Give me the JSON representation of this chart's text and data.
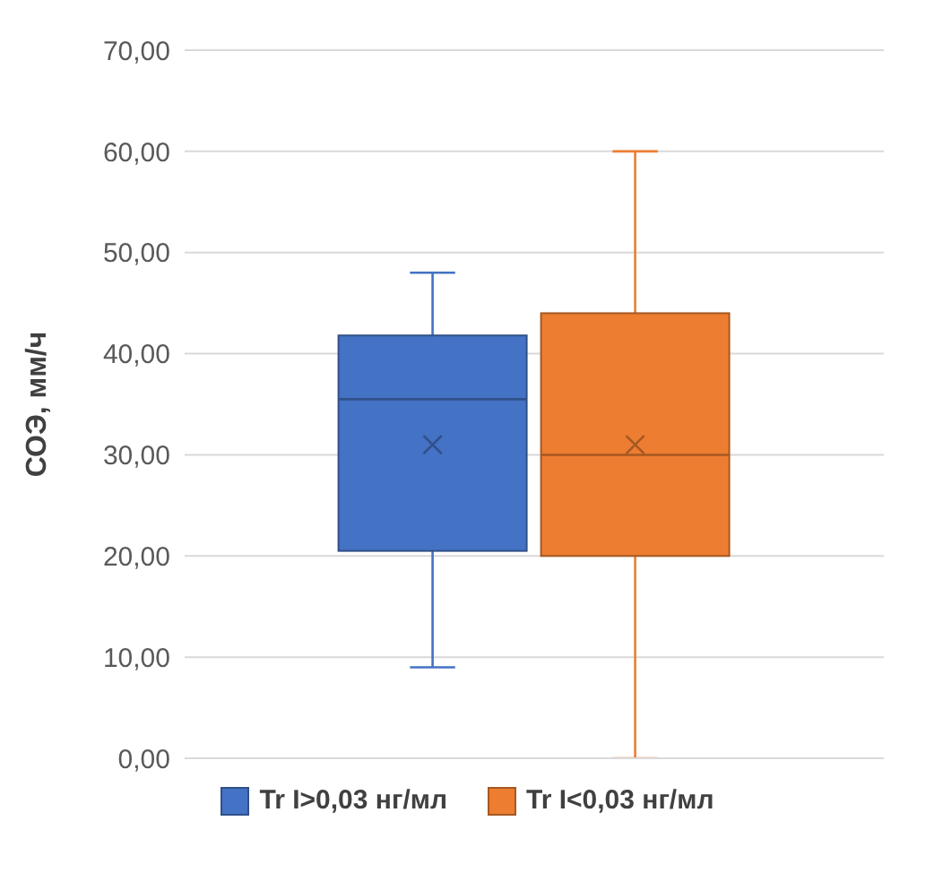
{
  "chart_data": {
    "type": "box",
    "ylabel": "СОЭ, мм/ч",
    "categories": [
      null
    ],
    "series": [
      {
        "name": "Tr I>0,03 нг/мл",
        "color": "#4472c4",
        "boxes": [
          {
            "low": 9,
            "q1": 20.5,
            "median": 35.5,
            "q3": 41.8,
            "high": 48,
            "mean": 31
          }
        ]
      },
      {
        "name": "Tr I<0,03 нг/мл",
        "color": "#ed7d31",
        "boxes": [
          {
            "low": 0,
            "q1": 20,
            "median": 30,
            "q3": 44,
            "high": 60,
            "mean": 31
          }
        ]
      }
    ],
    "ylim": [
      0,
      70
    ],
    "yticks": [
      {
        "value": 0,
        "label": "0,00"
      },
      {
        "value": 10,
        "label": "10,00"
      },
      {
        "value": 20,
        "label": "20,00"
      },
      {
        "value": 30,
        "label": "30,00"
      },
      {
        "value": 40,
        "label": "40,00"
      },
      {
        "value": 50,
        "label": "50,00"
      },
      {
        "value": 60,
        "label": "60,00"
      },
      {
        "value": 70,
        "label": "70,00"
      }
    ],
    "grid": "y",
    "legend": "bottom",
    "marker": "cross"
  }
}
